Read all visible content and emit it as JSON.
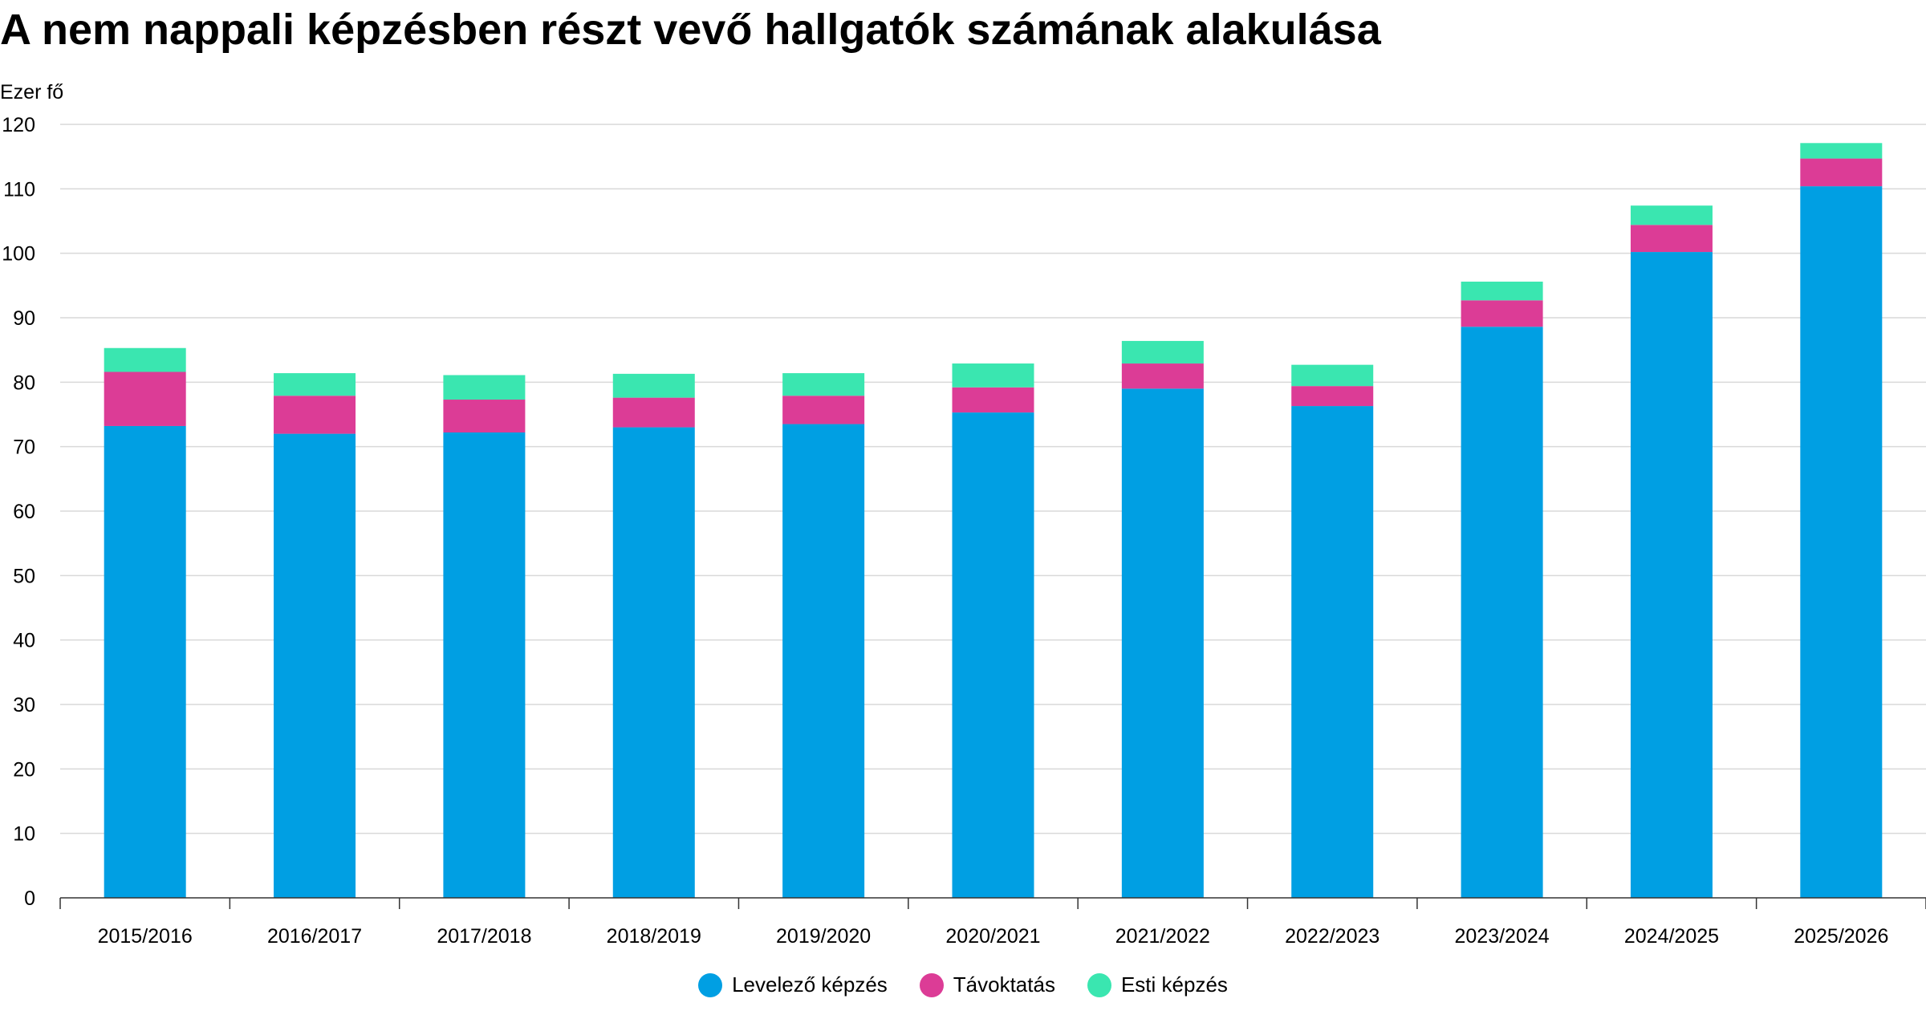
{
  "chart_data": {
    "type": "bar",
    "stacked": true,
    "title": "A nem nappali képzésben részt vevő hallgatók számának alakulása",
    "ylabel": "Ezer fő",
    "xlabel": "",
    "ylim": [
      0,
      120
    ],
    "yticks": [
      0,
      10,
      20,
      30,
      40,
      50,
      60,
      70,
      80,
      90,
      100,
      110,
      120
    ],
    "grid": true,
    "legend_position": "bottom",
    "categories": [
      "2015/2016",
      "2016/2017",
      "2017/2018",
      "2018/2019",
      "2019/2020",
      "2020/2021",
      "2021/2022",
      "2022/2023",
      "2023/2024",
      "2024/2025",
      "2025/2026"
    ],
    "series": [
      {
        "name": "Levelező képzés",
        "color": "#009fe3",
        "values": [
          73.2,
          72.0,
          72.2,
          73.0,
          73.5,
          75.3,
          79.0,
          76.3,
          88.6,
          100.2,
          110.4
        ]
      },
      {
        "name": "Távoktatás",
        "color": "#dc3c96",
        "values": [
          8.4,
          5.9,
          5.1,
          4.6,
          4.4,
          3.9,
          3.9,
          3.1,
          4.1,
          4.2,
          4.3
        ]
      },
      {
        "name": "Esti képzés",
        "color": "#3ae6b0",
        "values": [
          3.7,
          3.5,
          3.8,
          3.7,
          3.5,
          3.7,
          3.5,
          3.3,
          2.9,
          3.0,
          2.4
        ]
      }
    ]
  }
}
